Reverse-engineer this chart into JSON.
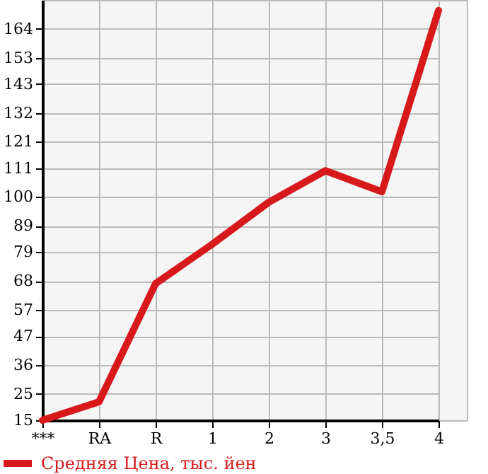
{
  "chart_data": {
    "type": "line",
    "categories": [
      "***",
      "RA",
      "R",
      "1",
      "2",
      "3",
      "3,5",
      "4"
    ],
    "series": [
      {
        "name": "Средняя Цена, тыс. йен",
        "color": "#d7191c",
        "values": [
          15,
          22,
          67,
          82,
          98,
          110,
          102,
          171
        ]
      }
    ],
    "ylim": [
      15,
      175
    ],
    "yticks": [
      15,
      25,
      36,
      47,
      57,
      68,
      79,
      89,
      100,
      111,
      121,
      132,
      143,
      153,
      164
    ],
    "grid": true,
    "legend": "bottom left",
    "marker": "none",
    "line_style": "solid"
  }
}
